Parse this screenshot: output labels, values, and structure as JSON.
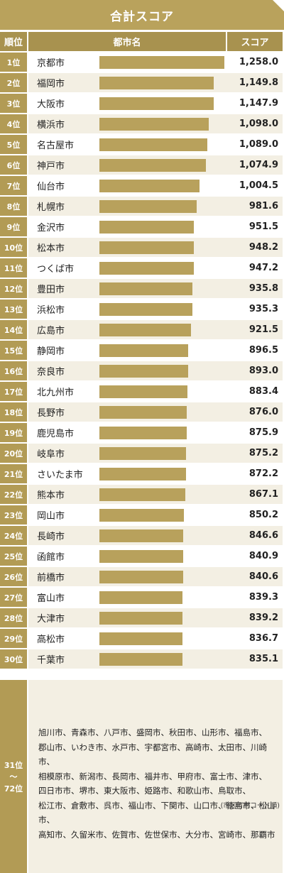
{
  "title": "合計スコア",
  "header": {
    "rank": "順位",
    "city": "都市名",
    "score": "スコア"
  },
  "colors": {
    "gold": "#b9a25c",
    "bar": "#b8a15c",
    "stripe": "#f3efe3"
  },
  "chart_data": {
    "type": "bar",
    "orientation": "horizontal",
    "title": "合計スコア",
    "ranks": [
      "1位",
      "2位",
      "3位",
      "4位",
      "5位",
      "6位",
      "7位",
      "8位",
      "9位",
      "10位",
      "11位",
      "12位",
      "13位",
      "14位",
      "15位",
      "16位",
      "17位",
      "18位",
      "19位",
      "20位",
      "21位",
      "22位",
      "23位",
      "24位",
      "25位",
      "26位",
      "27位",
      "28位",
      "29位",
      "30位"
    ],
    "categories": [
      "京都市",
      "福岡市",
      "大阪市",
      "横浜市",
      "名古屋市",
      "神戸市",
      "仙台市",
      "札幌市",
      "金沢市",
      "松本市",
      "つくば市",
      "豊田市",
      "浜松市",
      "広島市",
      "静岡市",
      "奈良市",
      "北九州市",
      "長野市",
      "鹿児島市",
      "岐阜市",
      "さいたま市",
      "熊本市",
      "岡山市",
      "長崎市",
      "函館市",
      "前橋市",
      "富山市",
      "大津市",
      "高松市",
      "千葉市"
    ],
    "values": [
      1258.0,
      1149.8,
      1147.9,
      1098.0,
      1089.0,
      1074.9,
      1004.5,
      981.6,
      951.5,
      948.2,
      947.2,
      935.8,
      935.3,
      921.5,
      896.5,
      893.0,
      883.4,
      876.0,
      875.9,
      875.2,
      872.2,
      867.1,
      850.2,
      846.6,
      840.9,
      840.6,
      839.3,
      839.2,
      836.7,
      835.1
    ],
    "labels": [
      "1,258.0",
      "1,149.8",
      "1,147.9",
      "1,098.0",
      "1,089.0",
      "1,074.9",
      "1,004.5",
      "981.6",
      "951.5",
      "948.2",
      "947.2",
      "935.8",
      "935.3",
      "921.5",
      "896.5",
      "893.0",
      "883.4",
      "876.0",
      "875.9",
      "875.2",
      "872.2",
      "867.1",
      "850.2",
      "846.6",
      "840.9",
      "840.6",
      "839.3",
      "839.2",
      "836.7",
      "835.1"
    ]
  },
  "others": {
    "rank_from": "31位",
    "rank_sep": "〜",
    "rank_to": "72位",
    "lines": [
      "旭川市、青森市、八戸市、盛岡市、秋田市、山形市、福島市、",
      "郡山市、いわき市、水戸市、宇都宮市、高崎市、太田市、川崎市、",
      "相模原市、新潟市、長岡市、福井市、甲府市、富士市、津市、",
      "四日市市、堺市、東大阪市、姫路市、和歌山市、鳥取市、",
      "松江市、倉敷市、呉市、福山市、下関市、山口市、徳島市、松山市、",
      "高知市、久留米市、佐賀市、佐世保市、大分市、宮崎市、那覇市"
    ],
    "note": "(市区町村コード順)"
  }
}
